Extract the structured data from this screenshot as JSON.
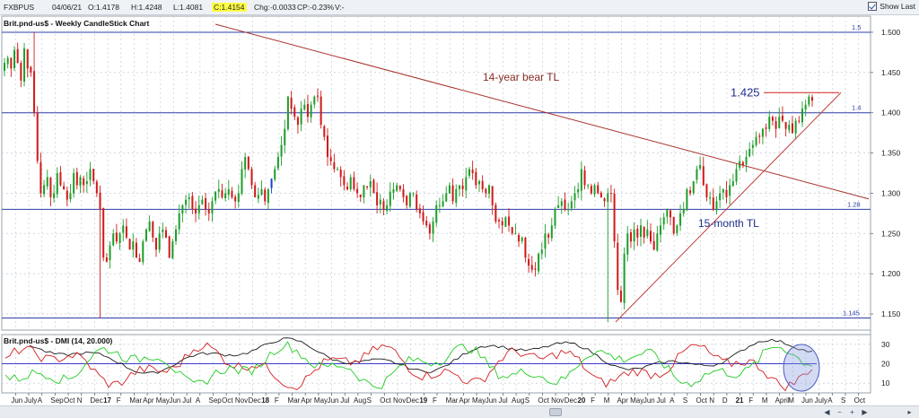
{
  "toolbar": {
    "symbol": "FXBPUS",
    "date": "04/06/21",
    "open": "O:1.4178",
    "high": "H:1.4248",
    "low": "L:1.4081",
    "close": "C:1.4154",
    "change": "Chg:-0.0033",
    "change_pct": "CP:-0.23%",
    "volume": "V:-",
    "show_last_label": "Show Last"
  },
  "chart_data": [
    {
      "type": "candlestick",
      "title": "Brit.pnd-us$ - Weekly CandleStick Chart",
      "ylim": [
        1.13,
        1.52
      ],
      "y_ticks": [
        "1.500",
        "1.450",
        "1.400",
        "1.350",
        "1.300",
        "1.250",
        "1.200",
        "1.150"
      ],
      "grid": true,
      "colors": {
        "up": "#1f9e2c",
        "down": "#d01a1a",
        "highlight": "#1a3fd0"
      },
      "closes": [
        1.462,
        1.468,
        1.455,
        1.478,
        1.462,
        1.44,
        1.48,
        1.455,
        1.45,
        1.4,
        1.34,
        1.3,
        1.31,
        1.32,
        1.295,
        1.3,
        1.325,
        1.31,
        1.305,
        1.292,
        1.3,
        1.325,
        1.31,
        1.32,
        1.31,
        1.315,
        1.33,
        1.315,
        1.3,
        1.28,
        1.22,
        1.215,
        1.235,
        1.25,
        1.24,
        1.25,
        1.26,
        1.245,
        1.23,
        1.24,
        1.22,
        1.215,
        1.24,
        1.255,
        1.265,
        1.245,
        1.23,
        1.25,
        1.255,
        1.245,
        1.22,
        1.24,
        1.255,
        1.275,
        1.285,
        1.292,
        1.295,
        1.28,
        1.275,
        1.285,
        1.292,
        1.28,
        1.275,
        1.29,
        1.302,
        1.305,
        1.295,
        1.3,
        1.305,
        1.295,
        1.29,
        1.3,
        1.33,
        1.345,
        1.33,
        1.31,
        1.295,
        1.298,
        1.305,
        1.29,
        1.305,
        1.318,
        1.33,
        1.345,
        1.36,
        1.38,
        1.42,
        1.405,
        1.395,
        1.385,
        1.405,
        1.41,
        1.395,
        1.41,
        1.42,
        1.42,
        1.385,
        1.37,
        1.345,
        1.34,
        1.33,
        1.33,
        1.32,
        1.31,
        1.305,
        1.32,
        1.305,
        1.3,
        1.295,
        1.31,
        1.308,
        1.315,
        1.3,
        1.285,
        1.292,
        1.28,
        1.285,
        1.302,
        1.305,
        1.31,
        1.305,
        1.295,
        1.285,
        1.3,
        1.3,
        1.28,
        1.275,
        1.265,
        1.26,
        1.25,
        1.265,
        1.285,
        1.285,
        1.29,
        1.3,
        1.31,
        1.29,
        1.305,
        1.31,
        1.305,
        1.32,
        1.33,
        1.325,
        1.31,
        1.315,
        1.305,
        1.3,
        1.31,
        1.285,
        1.265,
        1.265,
        1.26,
        1.27,
        1.26,
        1.25,
        1.25,
        1.24,
        1.245,
        1.22,
        1.21,
        1.205,
        1.205,
        1.225,
        1.23,
        1.25,
        1.245,
        1.26,
        1.28,
        1.285,
        1.29,
        1.28,
        1.28,
        1.29,
        1.3,
        1.305,
        1.33,
        1.31,
        1.31,
        1.3,
        1.31,
        1.3,
        1.295,
        1.29,
        1.3,
        1.3,
        1.24,
        1.18,
        1.165,
        1.225,
        1.25,
        1.24,
        1.255,
        1.245,
        1.26,
        1.245,
        1.255,
        1.24,
        1.23,
        1.25,
        1.26,
        1.27,
        1.28,
        1.27,
        1.25,
        1.26,
        1.275,
        1.28,
        1.305,
        1.3,
        1.315,
        1.33,
        1.335,
        1.31,
        1.295,
        1.295,
        1.28,
        1.29,
        1.3,
        1.305,
        1.295,
        1.31,
        1.315,
        1.33,
        1.34,
        1.335,
        1.345,
        1.355,
        1.36,
        1.37,
        1.37,
        1.38,
        1.38,
        1.395,
        1.39,
        1.38,
        1.395,
        1.39,
        1.38,
        1.385,
        1.375,
        1.39,
        1.39,
        1.405,
        1.41,
        1.42,
        1.415
      ],
      "series": [
        {
          "name": "",
          "note": "resistance levels"
        }
      ],
      "levels": [
        {
          "value": 1.5,
          "label": "1.5"
        },
        {
          "value": 1.4,
          "label": "1.4"
        },
        {
          "value": 1.28,
          "label": "1.28"
        },
        {
          "value": 1.145,
          "label": "1.145"
        },
        {
          "value": 1.425,
          "label": "1.425"
        }
      ],
      "annotations": {
        "bear_tl": "14-year bear TL",
        "month_tl": "15-month TL",
        "peak": "1.425"
      },
      "x_labels": [
        "Jun",
        "July",
        "A",
        "Sep",
        "Oct",
        "N",
        "Dec",
        "17",
        "F",
        "Mar",
        "Apr",
        "May",
        "Jun",
        "Jul",
        "A",
        "Sep",
        "Oct",
        "Nov",
        "Dec",
        "18",
        "F",
        "Mar",
        "Apr",
        "May",
        "Jun",
        "Jul",
        "Aug",
        "S",
        "Oct",
        "Nov",
        "Dec",
        "19",
        "F",
        "Mar",
        "Apr",
        "May",
        "Jun",
        "Jul",
        "Aug",
        "S",
        "Oct",
        "Nov",
        "Dec",
        "20",
        "F",
        "M",
        "Apr",
        "May",
        "Jun",
        "Jul",
        "A",
        "S",
        "Oct",
        "N",
        "D",
        "21",
        "F",
        "M",
        "April",
        "M",
        "Jun",
        "July",
        "A",
        "S",
        "Oct"
      ],
      "bold_x_labels": [
        "17",
        "18",
        "19",
        "20",
        "21"
      ]
    },
    {
      "type": "line",
      "title": "Brit.pnd-us$ - DMI (14, 20.000)",
      "ylim": [
        5,
        35
      ],
      "y_ticks": [
        "30",
        "20",
        "10"
      ],
      "reference_line": 20,
      "series": [
        {
          "name": "",
          "color": "#1a1a1a",
          "role": "ADX"
        },
        {
          "name": "",
          "color": "#d42020",
          "role": "-DI"
        },
        {
          "name": "",
          "color": "#22cc22",
          "role": "+DI"
        }
      ]
    }
  ]
}
